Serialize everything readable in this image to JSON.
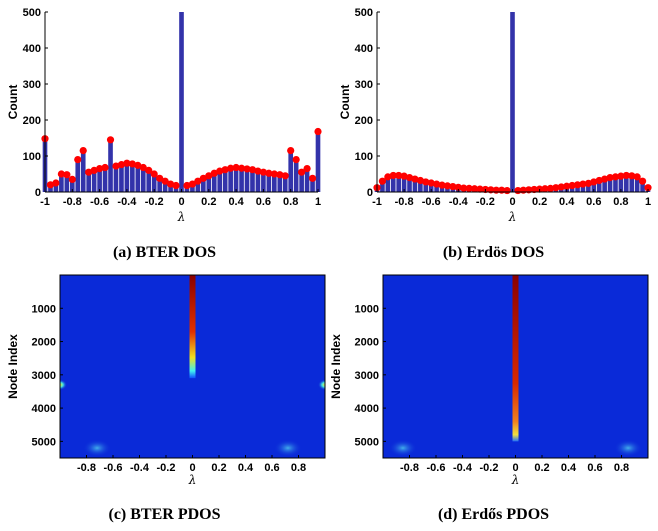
{
  "panels": [
    {
      "id": "a",
      "caption": "(a) BTER DOS",
      "chart_data": {
        "type": "bar",
        "xlabel": "λ",
        "ylabel": "Count",
        "xlim": [
          -1,
          1
        ],
        "ylim": [
          0,
          500
        ],
        "xticks": [
          "-1",
          "-0.8",
          "-0.6",
          "-0.4",
          "-0.2",
          "0",
          "0.2",
          "0.4",
          "0.6",
          "0.8",
          "1"
        ],
        "yticks": [
          "0",
          "100",
          "200",
          "300",
          "400",
          "500"
        ],
        "bar_color": "#3333aa",
        "marker_color": "#ff0000",
        "x": [
          -1.0,
          -0.96,
          -0.92,
          -0.88,
          -0.84,
          -0.8,
          -0.76,
          -0.72,
          -0.68,
          -0.64,
          -0.6,
          -0.56,
          -0.52,
          -0.48,
          -0.44,
          -0.4,
          -0.36,
          -0.32,
          -0.28,
          -0.24,
          -0.2,
          -0.16,
          -0.12,
          -0.08,
          -0.04,
          0.0,
          0.04,
          0.08,
          0.12,
          0.16,
          0.2,
          0.24,
          0.28,
          0.32,
          0.36,
          0.4,
          0.44,
          0.48,
          0.52,
          0.56,
          0.6,
          0.64,
          0.68,
          0.72,
          0.76,
          0.8,
          0.84,
          0.88,
          0.92,
          0.96,
          1.0
        ],
        "values": [
          148,
          20,
          25,
          50,
          48,
          35,
          90,
          115,
          55,
          60,
          65,
          68,
          145,
          72,
          76,
          80,
          78,
          74,
          68,
          60,
          50,
          38,
          30,
          22,
          18,
          500,
          18,
          22,
          30,
          38,
          45,
          52,
          58,
          62,
          66,
          68,
          66,
          64,
          62,
          58,
          55,
          52,
          50,
          48,
          45,
          115,
          90,
          55,
          65,
          38,
          168
        ]
      }
    },
    {
      "id": "b",
      "caption": "(b) Erdös DOS",
      "chart_data": {
        "type": "bar",
        "xlabel": "λ",
        "ylabel": "Count",
        "xlim": [
          -1,
          1
        ],
        "ylim": [
          0,
          500
        ],
        "xticks": [
          "-1",
          "-0.8",
          "-0.6",
          "-0.4",
          "-0.2",
          "0",
          "0.2",
          "0.4",
          "0.6",
          "0.8",
          "1"
        ],
        "yticks": [
          "0",
          "100",
          "200",
          "300",
          "400",
          "500"
        ],
        "bar_color": "#3333aa",
        "marker_color": "#ff0000",
        "x": [
          -1.0,
          -0.96,
          -0.92,
          -0.88,
          -0.84,
          -0.8,
          -0.76,
          -0.72,
          -0.68,
          -0.64,
          -0.6,
          -0.56,
          -0.52,
          -0.48,
          -0.44,
          -0.4,
          -0.36,
          -0.32,
          -0.28,
          -0.24,
          -0.2,
          -0.16,
          -0.12,
          -0.08,
          -0.04,
          0.0,
          0.04,
          0.08,
          0.12,
          0.16,
          0.2,
          0.24,
          0.28,
          0.32,
          0.36,
          0.4,
          0.44,
          0.48,
          0.52,
          0.56,
          0.6,
          0.64,
          0.68,
          0.72,
          0.76,
          0.8,
          0.84,
          0.88,
          0.92,
          0.96,
          1.0
        ],
        "values": [
          12,
          30,
          42,
          46,
          46,
          44,
          40,
          36,
          32,
          28,
          25,
          22,
          19,
          17,
          15,
          13,
          11,
          10,
          9,
          8,
          7,
          6,
          5,
          5,
          4,
          500,
          4,
          5,
          6,
          7,
          8,
          9,
          10,
          12,
          14,
          16,
          18,
          20,
          22,
          24,
          28,
          32,
          36,
          40,
          42,
          44,
          46,
          45,
          42,
          30,
          12
        ]
      }
    },
    {
      "id": "c",
      "caption": "(c) BTER PDOS",
      "chart_data": {
        "type": "heatmap",
        "xlabel": "λ",
        "ylabel": "Node Index",
        "xlim": [
          -1,
          1
        ],
        "ylim": [
          5500,
          0
        ],
        "xticks": [
          "-0.8",
          "-0.6",
          "-0.4",
          "-0.2",
          "0",
          "0.2",
          "0.4",
          "0.6",
          "0.8"
        ],
        "yticks": [
          "1000",
          "2000",
          "3000",
          "4000",
          "5000"
        ],
        "background_color": "#0a2ad8",
        "hot_spots": [
          {
            "lambda": 0.0,
            "node_start": 0,
            "node_end": 3100,
            "intensity": "high"
          },
          {
            "lambda": -1.0,
            "node_start": 3200,
            "node_end": 3400,
            "intensity": "medium"
          },
          {
            "lambda": 1.0,
            "node_start": 3200,
            "node_end": 3400,
            "intensity": "medium"
          },
          {
            "lambda": -0.72,
            "node_start": 5000,
            "node_end": 5400,
            "intensity": "low"
          },
          {
            "lambda": 0.72,
            "node_start": 5000,
            "node_end": 5400,
            "intensity": "low"
          }
        ]
      }
    },
    {
      "id": "d",
      "caption": "(d) Erdős PDOS",
      "chart_data": {
        "type": "heatmap",
        "xlabel": "λ",
        "ylabel": "Node Index",
        "xlim": [
          -1,
          1
        ],
        "ylim": [
          5500,
          0
        ],
        "xticks": [
          "-0.8",
          "-0.6",
          "-0.4",
          "-0.2",
          "0",
          "0.2",
          "0.4",
          "0.6",
          "0.8"
        ],
        "yticks": [
          "1000",
          "2000",
          "3000",
          "4000",
          "5000"
        ],
        "background_color": "#0a2ad8",
        "hot_spots": [
          {
            "lambda": 0.0,
            "node_start": 0,
            "node_end": 5000,
            "intensity": "high"
          },
          {
            "lambda": -0.85,
            "node_start": 5000,
            "node_end": 5400,
            "intensity": "low"
          },
          {
            "lambda": 0.85,
            "node_start": 5000,
            "node_end": 5400,
            "intensity": "low"
          }
        ]
      }
    }
  ]
}
